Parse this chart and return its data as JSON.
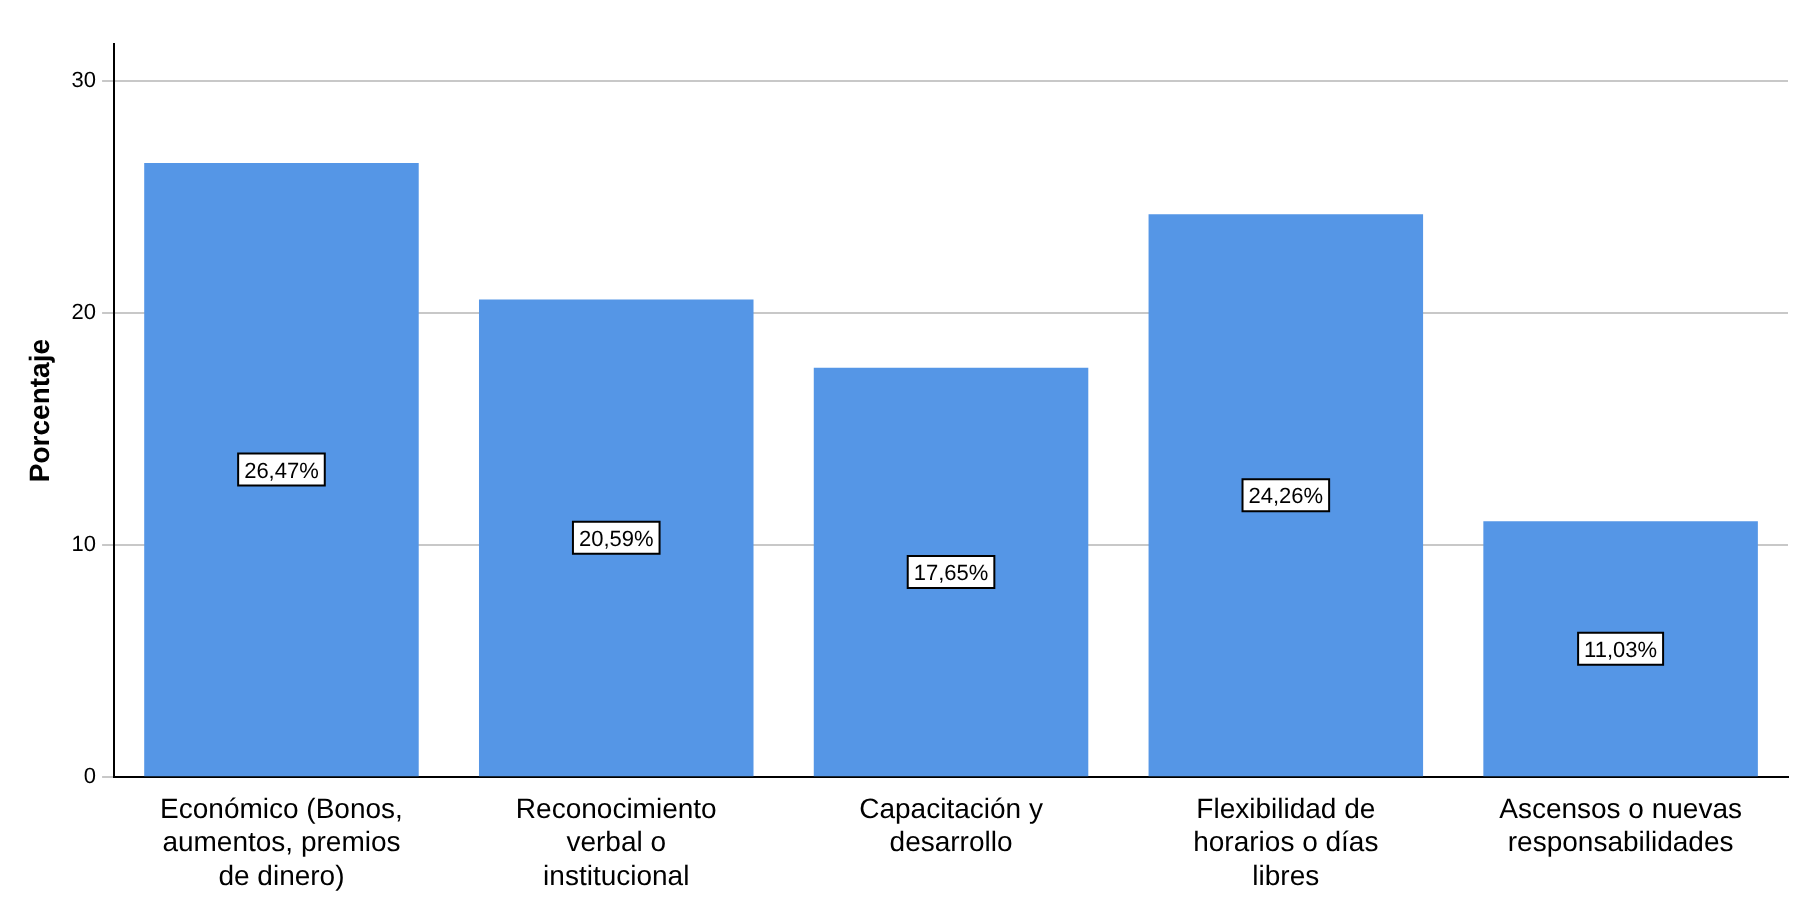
{
  "chart_data": {
    "type": "bar",
    "ylabel": "Porcentaje",
    "categories": [
      "Económico (Bonos, aumentos, premios de dinero)",
      "Reconocimiento verbal o institucional",
      "Capacitación y desarrollo",
      "Flexibilidad de horarios o días libres",
      "Ascensos o nuevas responsabilidades"
    ],
    "values": [
      26.47,
      20.59,
      17.65,
      24.26,
      11.03
    ],
    "value_labels": [
      "26,47%",
      "20,59%",
      "17,65%",
      "24,26%",
      "11,03%"
    ],
    "color": "#5596e6",
    "ylim": [
      0,
      31.6
    ],
    "yticks": [
      0,
      10,
      20,
      30
    ],
    "grid": "y",
    "legend": false
  }
}
